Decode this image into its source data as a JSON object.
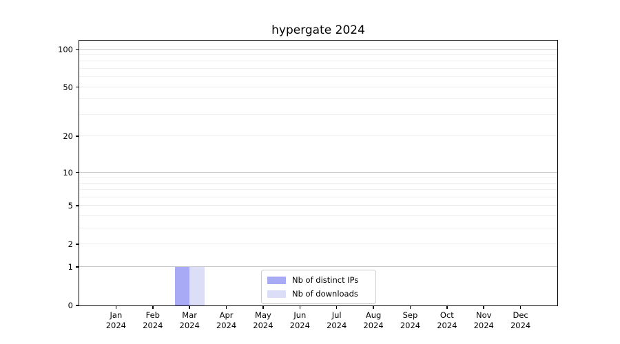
{
  "title": "hypergate 2024",
  "colors": {
    "bar_distinct_ips": "#a8aaf5",
    "bar_downloads": "#dcdef8",
    "grid_decade": "#c8c8c8",
    "grid_level": "#e9e9e9",
    "grid_minor": "#f0f0f0",
    "axis": "#000000",
    "legend_border": "#cccccc"
  },
  "legend": {
    "position": "lower center"
  },
  "chart_data": {
    "type": "bar",
    "title": "hypergate 2024",
    "categories": [
      "Jan 2024",
      "Feb 2024",
      "Mar 2024",
      "Apr 2024",
      "May 2024",
      "Jun 2024",
      "Jul 2024",
      "Aug 2024",
      "Sep 2024",
      "Oct 2024",
      "Nov 2024",
      "Dec 2024"
    ],
    "series": [
      {
        "name": "Nb of distinct IPs",
        "color": "#a8aaf5",
        "values": [
          0,
          0,
          1,
          0,
          0,
          0,
          0,
          0,
          0,
          0,
          0,
          0
        ]
      },
      {
        "name": "Nb of downloads",
        "color": "#dcdef8",
        "values": [
          0,
          0,
          1,
          0,
          0,
          0,
          0,
          0,
          0,
          0,
          0,
          0
        ]
      }
    ],
    "xlabel": "",
    "ylabel": "",
    "yscale": "log1p",
    "ylim": [
      0,
      117
    ],
    "y_ticks": [
      0,
      1,
      2,
      5,
      10,
      20,
      50,
      100
    ],
    "y_minor_ticks": [
      3,
      4,
      6,
      7,
      8,
      9,
      30,
      40,
      60,
      70,
      80,
      90
    ],
    "grid": "horizontal",
    "legend_position": "lower center"
  }
}
